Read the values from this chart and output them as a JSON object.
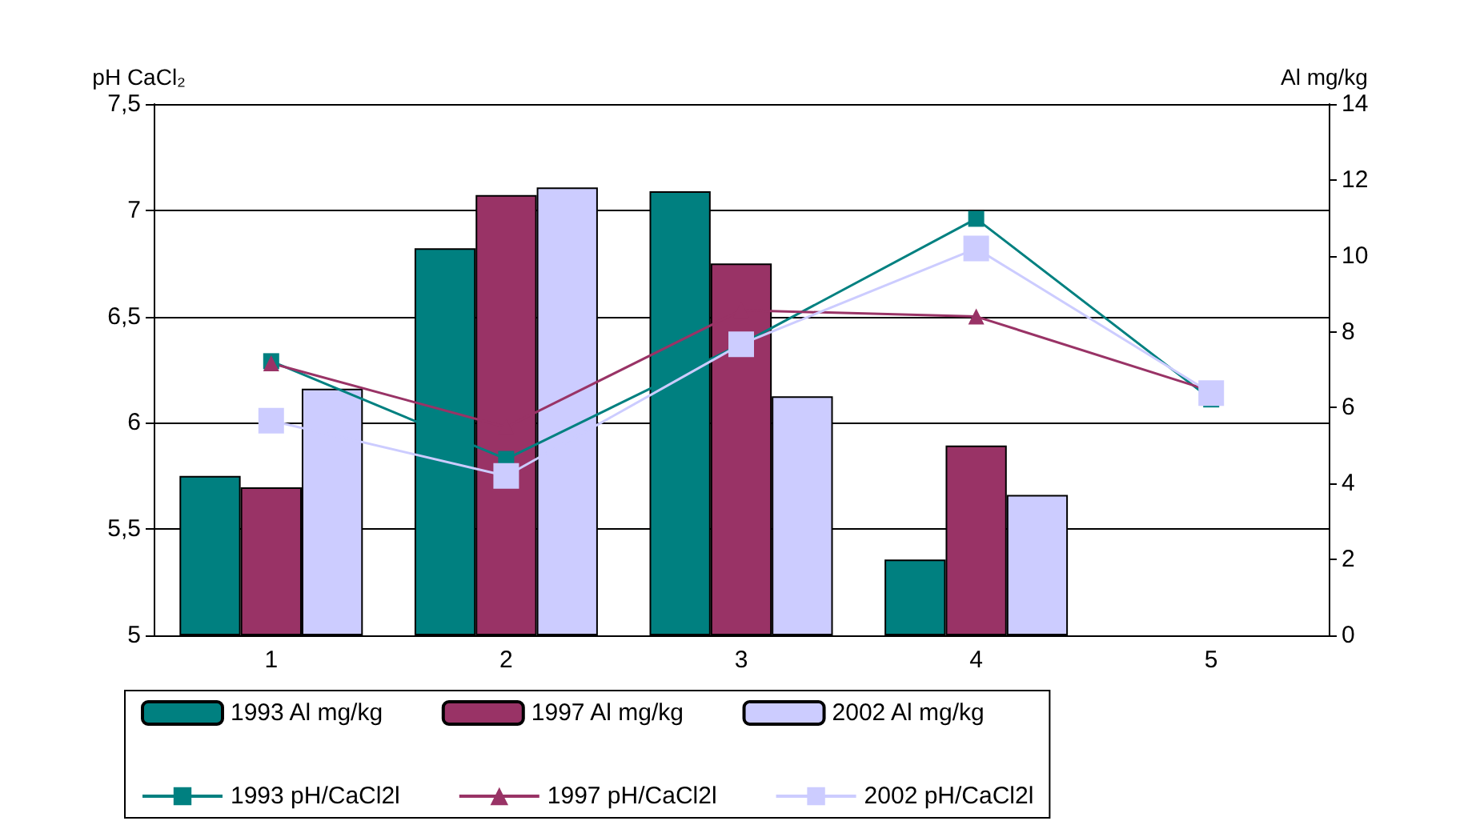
{
  "chart_data": {
    "type": "bar",
    "ylabel": "pH CaCl₂",
    "y2label": "Al mg/kg",
    "categories": [
      "1",
      "2",
      "3",
      "4",
      "5"
    ],
    "ylim": [
      5,
      7.5
    ],
    "yticks": [
      5,
      {
        "value": 5.5,
        "label": "5,5"
      },
      6,
      {
        "value": 6.5,
        "label": "6,5"
      },
      7,
      {
        "value": 7.5,
        "label": "7,5"
      }
    ],
    "y2lim": [
      0,
      14
    ],
    "y2ticks": [
      0,
      2,
      4,
      6,
      8,
      10,
      12,
      14
    ],
    "grid": "y",
    "legend": "bottom",
    "series": [
      {
        "name": "1993 Al mg/kg",
        "axis": "y2",
        "color": "#008080",
        "values": [
          4.2,
          10.2,
          11.7,
          2.0,
          null
        ]
      },
      {
        "name": "1997 Al mg/kg",
        "axis": "y2",
        "color": "#993366",
        "values": [
          3.9,
          11.6,
          9.8,
          5.0,
          null
        ]
      },
      {
        "name": "2002 Al mg/kg",
        "axis": "y2",
        "color": "#ccccff",
        "values": [
          6.5,
          11.8,
          6.3,
          3.7,
          null
        ]
      },
      {
        "name": "1993 pH/CaCl2l",
        "type": "line",
        "axis": "y",
        "color": "#008080",
        "marker": "square",
        "values": [
          6.29,
          5.83,
          6.37,
          6.96,
          6.11
        ]
      },
      {
        "name": "1997 pH/CaCl2l",
        "type": "line",
        "axis": "y",
        "color": "#993366",
        "marker": "triangle",
        "values": [
          6.28,
          5.98,
          6.53,
          6.5,
          6.15
        ]
      },
      {
        "name": "2002 pH/CaCl2l",
        "type": "line",
        "axis": "y",
        "color": "#ccccff",
        "marker": "square",
        "values": [
          6.01,
          5.75,
          6.37,
          6.82,
          6.14
        ]
      }
    ]
  }
}
